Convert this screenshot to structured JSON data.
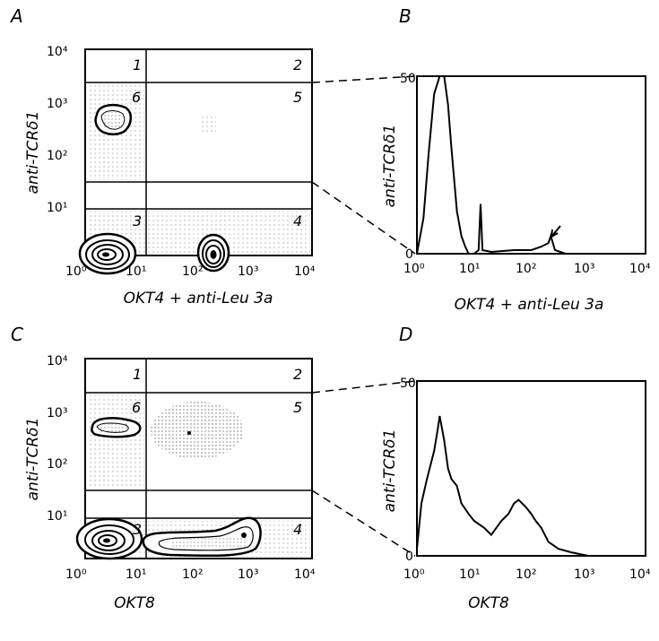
{
  "panels": [
    {
      "letter": "A",
      "type": "contour",
      "xlabel": "OKT4 + anti-Leu 3a",
      "ylabel": "anti-TCRδ1",
      "x_ticks": [
        "10⁰",
        "10¹",
        "10²",
        "10³",
        "10⁴"
      ],
      "y_ticks": [
        "10⁰",
        "10¹",
        "10²",
        "10³",
        "10⁴"
      ],
      "region_labels": [
        "1",
        "2",
        "3",
        "4",
        "5",
        "6"
      ]
    },
    {
      "letter": "B",
      "type": "histogram",
      "xlabel": "OKT4 + anti-Leu 3a",
      "ylabel": "anti-TCRδ1",
      "x_ticks": [
        "10⁰",
        "10¹",
        "10²",
        "10³",
        "10⁴"
      ],
      "y_ticks": [
        "0",
        "50"
      ]
    },
    {
      "letter": "C",
      "type": "contour",
      "xlabel": "OKT8",
      "ylabel": "anti-TCRδ1",
      "x_ticks": [
        "10⁰",
        "10¹",
        "10²",
        "10³",
        "10⁴"
      ],
      "y_ticks": [
        "10⁰",
        "10¹",
        "10²",
        "10³",
        "10⁴"
      ],
      "region_labels": [
        "1",
        "2",
        "3",
        "4",
        "5",
        "6"
      ]
    },
    {
      "letter": "D",
      "type": "histogram",
      "xlabel": "OKT8",
      "ylabel": "anti-TCRδ1",
      "x_ticks": [
        "10⁰",
        "10¹",
        "10²",
        "10³",
        "10⁴"
      ],
      "y_ticks": [
        "0",
        "50"
      ]
    }
  ],
  "chart_data": [
    {
      "panel": "A",
      "type": "heatmap",
      "xscale": "log",
      "yscale": "log",
      "xlim": [
        1,
        10000
      ],
      "ylim": [
        1,
        10000
      ],
      "x_gate": 14,
      "y_gates": [
        2100,
        40,
        13
      ],
      "populations": [
        {
          "region": "6",
          "x": 2.5,
          "y": 750
        },
        {
          "region": "3",
          "x": 2.3,
          "y": 2
        },
        {
          "region": "4",
          "x": 190,
          "y": 2
        }
      ]
    },
    {
      "panel": "B",
      "type": "line",
      "xscale": "log",
      "xlim": [
        1,
        10000
      ],
      "ylim": [
        0,
        50
      ],
      "x": [
        1.0,
        1.3,
        1.6,
        2.0,
        2.5,
        3.0,
        3.5,
        4.0,
        5.0,
        6.0,
        7.0,
        8.0,
        9.0,
        10,
        12,
        13,
        14,
        20,
        50,
        100,
        150,
        200,
        220,
        260,
        400,
        1000,
        10000
      ],
      "values": [
        0,
        10,
        28,
        45,
        50,
        50,
        42,
        30,
        12,
        5,
        2,
        0,
        0,
        0,
        1,
        14,
        1,
        0.5,
        1,
        1,
        2,
        3,
        5,
        1,
        0,
        0,
        0
      ],
      "annotations": [
        "arrow at ~200"
      ]
    },
    {
      "panel": "C",
      "type": "heatmap",
      "xscale": "log",
      "yscale": "log",
      "xlim": [
        1,
        10000
      ],
      "ylim": [
        1,
        10000
      ],
      "x_gate": 14,
      "y_gates": [
        2100,
        40,
        13
      ],
      "populations": [
        {
          "region": "6",
          "x": 3,
          "y": 550
        },
        {
          "region": "3",
          "x": 2.5,
          "y": 2
        },
        {
          "region": "4",
          "x": 150,
          "y": 2.5
        }
      ]
    },
    {
      "panel": "D",
      "type": "line",
      "xscale": "log",
      "xlim": [
        1,
        10000
      ],
      "ylim": [
        0,
        50
      ],
      "x": [
        1.0,
        1.2,
        1.5,
        2.0,
        2.3,
        2.5,
        3.0,
        3.5,
        4.0,
        5.0,
        6.0,
        8.0,
        10,
        15,
        20,
        30,
        40,
        50,
        60,
        80,
        100,
        120,
        150,
        200,
        300,
        500,
        700,
        1000,
        10000
      ],
      "values": [
        2,
        15,
        22,
        30,
        36,
        40,
        33,
        25,
        22,
        20,
        15,
        12,
        10,
        8,
        6,
        10,
        12,
        15,
        16,
        14,
        12,
        10,
        8,
        4,
        2,
        1,
        0.5,
        0,
        0
      ]
    }
  ]
}
